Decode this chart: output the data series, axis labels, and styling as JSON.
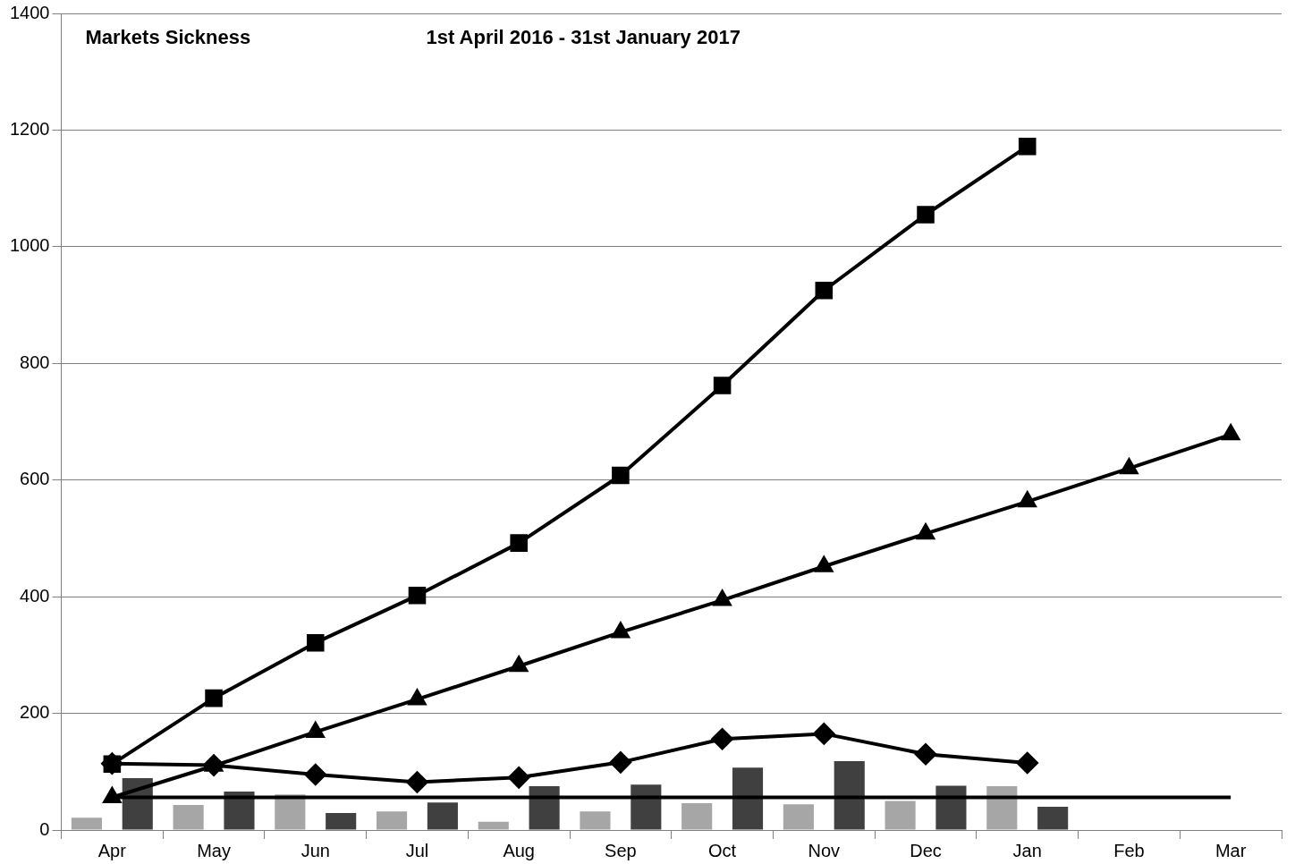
{
  "chart_data": {
    "type": "line",
    "title": "Markets Sickness",
    "subtitle": "1st April 2016 - 31st January 2017",
    "categories": [
      "Apr",
      "May",
      "Jun",
      "Jul",
      "Aug",
      "Sep",
      "Oct",
      "Nov",
      "Dec",
      "Jan",
      "Feb",
      "Mar"
    ],
    "series": [
      {
        "type": "bar",
        "color": "#a6a6a6",
        "values": [
          21,
          43,
          61,
          32,
          14,
          32,
          46,
          44,
          50,
          75,
          null,
          null
        ]
      },
      {
        "type": "bar",
        "color": "#404040",
        "values": [
          89,
          66,
          29,
          47,
          75,
          78,
          107,
          118,
          76,
          40,
          null,
          null
        ]
      },
      {
        "color": "#000000",
        "marker": "square",
        "values": [
          113,
          226,
          321,
          402,
          492,
          608,
          762,
          925,
          1055,
          1172,
          null,
          null
        ]
      },
      {
        "color": "#000000",
        "marker": "triangle",
        "values": [
          56,
          110,
          168,
          224,
          281,
          339,
          394,
          452,
          508,
          563,
          620,
          678
        ]
      },
      {
        "color": "#000000",
        "marker": "diamond",
        "values": [
          114,
          111,
          95,
          82,
          90,
          116,
          156,
          165,
          130,
          115,
          null,
          null
        ]
      },
      {
        "color": "#000000",
        "marker": "none",
        "values": [
          56,
          56,
          56,
          56,
          56,
          56,
          56,
          56,
          56,
          56,
          56,
          56
        ]
      }
    ],
    "ylim": [
      0,
      1400
    ],
    "yticks": [
      0,
      200,
      400,
      600,
      800,
      1000,
      1200,
      1400
    ],
    "grid": "y",
    "legend": false
  }
}
